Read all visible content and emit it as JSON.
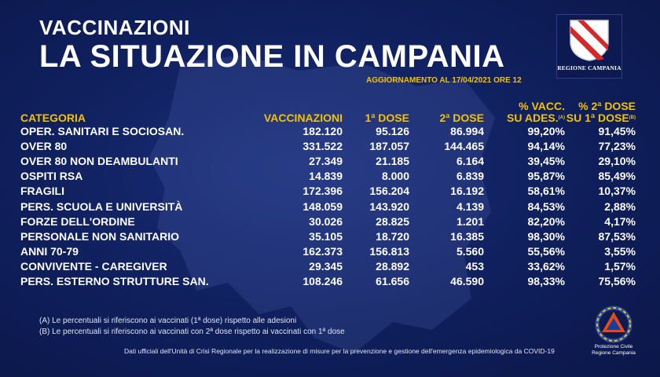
{
  "header": {
    "kicker": "VACCINAZIONI",
    "title": "LA SITUAZIONE IN CAMPANIA",
    "updated": "AGGIORNAMENTO AL 17/04/2021 ORE 12"
  },
  "logo": {
    "text": "REGIONE CAMPANIA"
  },
  "table": {
    "headers": {
      "category": "CATEGORIA",
      "vaccinations": "VACCINAZIONI",
      "dose1": "1ª DOSE",
      "dose2": "2ª DOSE",
      "pct_line1": "% VACC.",
      "pct_line2": "SU ADES.",
      "pct_note": "(A)",
      "pct2_line1": "% 2ª DOSE",
      "pct2_line2": "SU 1ª DOSE",
      "pct2_note": "(B)"
    },
    "rows": [
      [
        "OPER. SANITARI E SOCIOSAN.",
        "182.120",
        "95.126",
        "86.994",
        "99,20%",
        "91,45%"
      ],
      [
        "OVER 80",
        "331.522",
        "187.057",
        "144.465",
        "94,14%",
        "77,23%"
      ],
      [
        "OVER 80 NON DEAMBULANTI",
        "27.349",
        "21.185",
        "6.164",
        "39,45%",
        "29,10%"
      ],
      [
        "OSPITI RSA",
        "14.839",
        "8.000",
        "6.839",
        "95,87%",
        "85,49%"
      ],
      [
        "FRAGILI",
        "172.396",
        "156.204",
        "16.192",
        "58,61%",
        "10,37%"
      ],
      [
        "PERS. SCUOLA E UNIVERSITÀ",
        "148.059",
        "143.920",
        "4.139",
        "84,53%",
        "2,88%"
      ],
      [
        "FORZE DELL'ORDINE",
        "30.026",
        "28.825",
        "1.201",
        "82,20%",
        "4,17%"
      ],
      [
        "PERSONALE NON SANITARIO",
        "35.105",
        "18.720",
        "16.385",
        "98,30%",
        "87,53%"
      ],
      [
        "ANNI 70-79",
        "162.373",
        "156.813",
        "5.560",
        "55,56%",
        "3,55%"
      ],
      [
        "CONVIVENTE - CAREGIVER",
        "29.345",
        "28.892",
        "453",
        "33,62%",
        "1,57%"
      ],
      [
        "PERS. ESTERNO STRUTTURE SAN.",
        "108.246",
        "61.656",
        "46.590",
        "98,33%",
        "75,56%"
      ]
    ]
  },
  "notes": {
    "a": "(A) Le percentuali si riferiscono ai vaccinati (1ª dose) rispetto alle adesioni",
    "b": "(B) Le percentuali si riferiscono ai vaccinati con 2ª dose rispetto ai vaccinati con 1ª dose"
  },
  "footer": "Dati ufficiali dell'Unità di Crisi Regionale per la realizzazione di misure per la prevenzione e gestione dell'emergenza epidemiologica da COVID-19",
  "protezione_civile": {
    "line1": "Protezione Civile",
    "line2": "Regione Campania"
  },
  "colors": {
    "background": "#0f1f5c",
    "accent": "#f2c200",
    "text": "#ffffff"
  }
}
